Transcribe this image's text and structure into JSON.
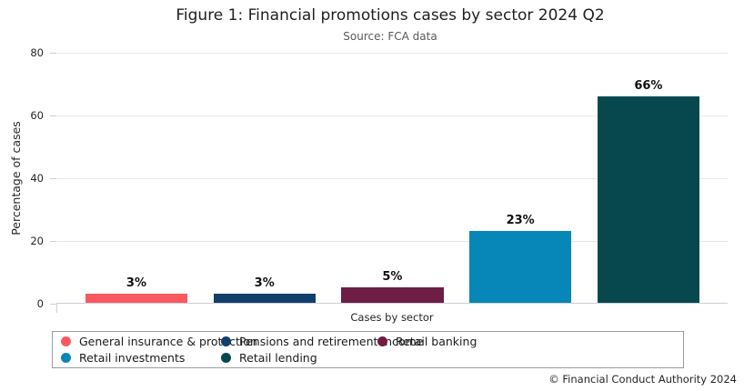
{
  "header": {
    "title": "Figure 1: Financial promotions cases by sector 2024 Q2",
    "subtitle": "Source: FCA data"
  },
  "chart_data": {
    "type": "bar",
    "title": "Figure 1: Financial promotions cases by sector 2024 Q2",
    "subtitle": "Source: FCA data",
    "categories": [
      "General insurance & protection",
      "Pensions and retirement Income",
      "Retail banking",
      "Retail investments",
      "Retail lending"
    ],
    "values": [
      3,
      3,
      5,
      23,
      66
    ],
    "value_labels": [
      "3%",
      "3%",
      "5%",
      "23%",
      "66%"
    ],
    "colors": [
      "#FA5A5F",
      "#123F69",
      "#6E1E45",
      "#0786B8",
      "#06484E"
    ],
    "xlabel": "Cases by sector",
    "ylabel": "Percentage of cases",
    "ylim": [
      0,
      80
    ],
    "yticks": [
      0,
      20,
      40,
      60,
      80
    ],
    "grid": "horizontal",
    "legend_position": "bottom"
  },
  "footer": {
    "copyright": "© Financial Conduct Authority 2024"
  }
}
